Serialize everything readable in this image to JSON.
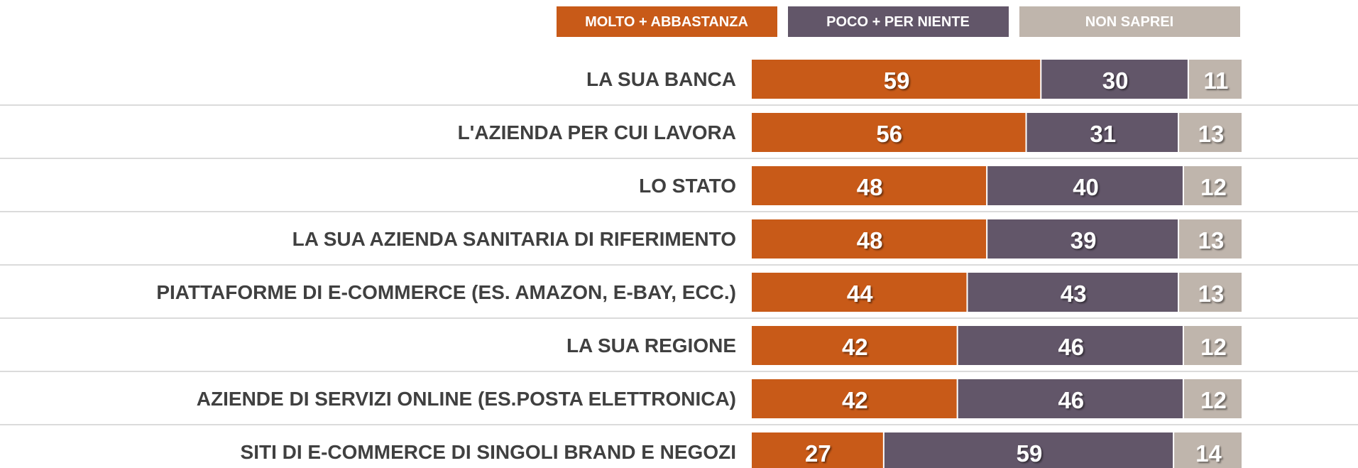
{
  "chart_data": {
    "type": "stacked_barh",
    "categories": [
      "LA SUA BANCA",
      "L'AZIENDA PER CUI LAVORA",
      "LO STATO",
      "LA SUA AZIENDA SANITARIA DI RIFERIMENTO",
      "PIATTAFORME DI E-COMMERCE (ES. AMAZON, E-BAY, ECC.)",
      "LA SUA REGIONE",
      "AZIENDE DI SERVIZI ONLINE (ES.POSTA ELETTRONICA)",
      "SITI DI E-COMMERCE DI SINGOLI BRAND E NEGOZI"
    ],
    "series": [
      {
        "name": "MOLTO + ABBASTANZA",
        "color": "#c85a18",
        "values": [
          59,
          56,
          48,
          48,
          44,
          42,
          42,
          27
        ]
      },
      {
        "name": "POCO + PER NIENTE",
        "color": "#625669",
        "values": [
          30,
          31,
          40,
          39,
          43,
          46,
          46,
          59
        ]
      },
      {
        "name": "NON SAPREI",
        "color": "#bfb5ac",
        "values": [
          11,
          13,
          12,
          13,
          13,
          12,
          12,
          14
        ]
      }
    ],
    "xlim": [
      0,
      100
    ]
  }
}
